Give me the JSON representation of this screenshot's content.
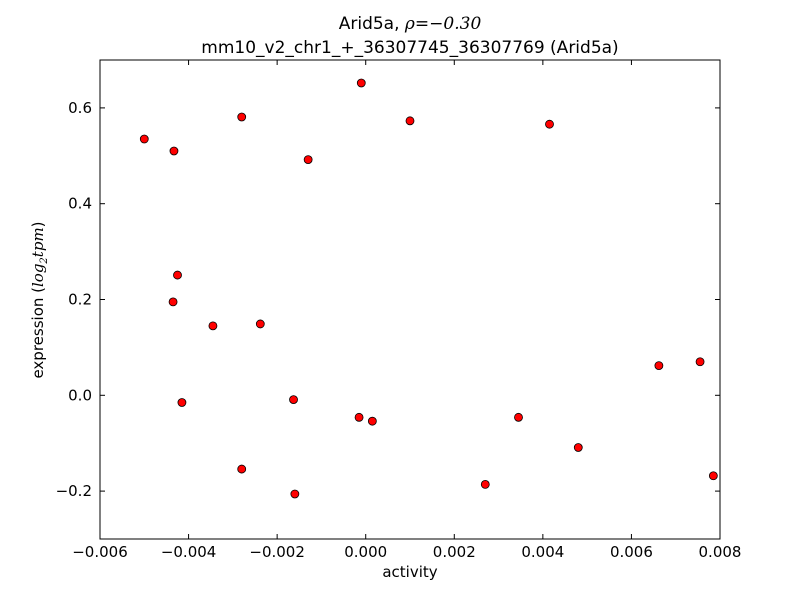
{
  "chart_data": {
    "type": "scatter",
    "title_line1": "Arid5a, ",
    "title_math": "ρ=−0.30",
    "title_line2": "mm10_v2_chr1_+_36307745_36307769 (Arid5a)",
    "xlabel": "activity",
    "ylabel_prefix": "expression (",
    "ylabel_math": "log",
    "ylabel_sub": "2",
    "ylabel_math2": "tpm",
    "ylabel_suffix": ")",
    "xlim": [
      -0.006,
      0.008
    ],
    "ylim": [
      -0.3,
      0.7
    ],
    "xticks": [
      -0.006,
      -0.004,
      -0.002,
      0.0,
      0.002,
      0.004,
      0.006,
      0.008
    ],
    "xtick_labels": [
      "−0.006",
      "−0.004",
      "−0.002",
      "0.000",
      "0.002",
      "0.004",
      "0.006",
      "0.008"
    ],
    "yticks": [
      -0.2,
      0.0,
      0.2,
      0.4,
      0.6
    ],
    "ytick_labels": [
      "−0.2",
      "0.0",
      "0.2",
      "0.4",
      "0.6"
    ],
    "grid": false,
    "marker_color": "#ff0000",
    "marker_edge": "#000000",
    "points": [
      {
        "x": -0.005,
        "y": 0.535
      },
      {
        "x": -0.00433,
        "y": 0.51
      },
      {
        "x": -0.0028,
        "y": 0.581
      },
      {
        "x": -0.0013,
        "y": 0.492
      },
      {
        "x": -0.0001,
        "y": 0.652
      },
      {
        "x": 0.001,
        "y": 0.573
      },
      {
        "x": 0.00415,
        "y": 0.566
      },
      {
        "x": -0.00425,
        "y": 0.251
      },
      {
        "x": -0.00435,
        "y": 0.195
      },
      {
        "x": -0.00345,
        "y": 0.145
      },
      {
        "x": -0.00238,
        "y": 0.149
      },
      {
        "x": 0.00662,
        "y": 0.062
      },
      {
        "x": 0.00755,
        "y": 0.07
      },
      {
        "x": -0.00415,
        "y": -0.015
      },
      {
        "x": -0.00163,
        "y": -0.009
      },
      {
        "x": -0.00015,
        "y": -0.046
      },
      {
        "x": 0.00015,
        "y": -0.054
      },
      {
        "x": 0.00345,
        "y": -0.046
      },
      {
        "x": 0.0048,
        "y": -0.109
      },
      {
        "x": -0.0028,
        "y": -0.154
      },
      {
        "x": -0.0016,
        "y": -0.206
      },
      {
        "x": 0.0027,
        "y": -0.186
      },
      {
        "x": 0.00785,
        "y": -0.168
      }
    ]
  }
}
